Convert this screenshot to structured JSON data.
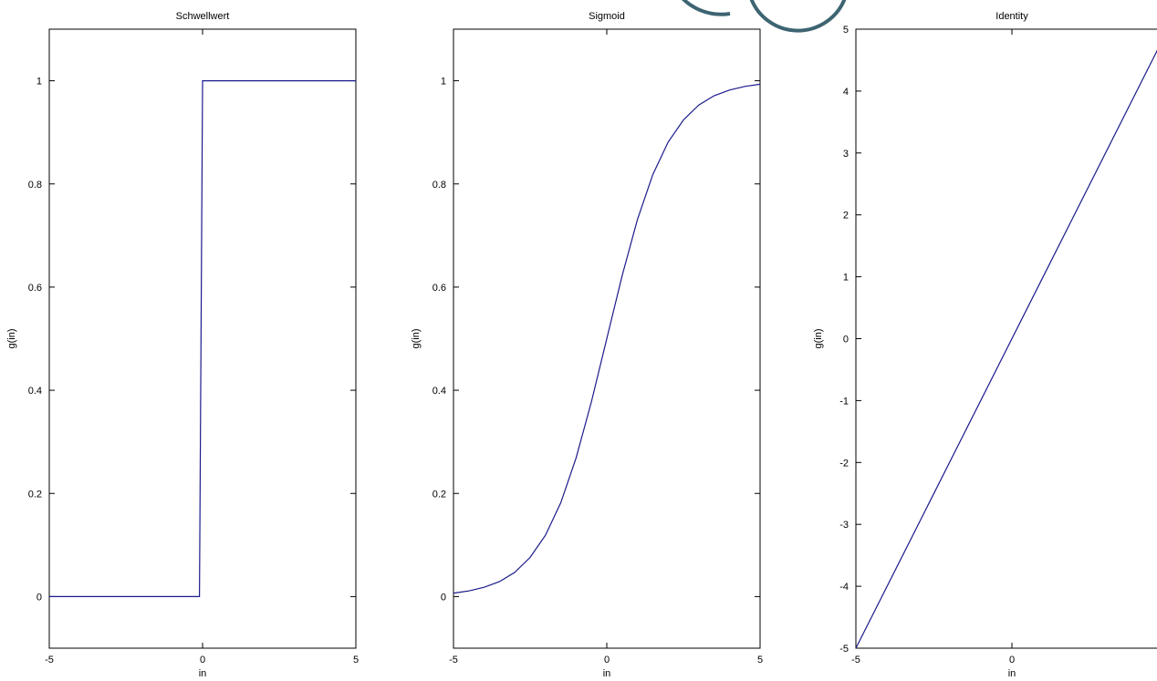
{
  "chart_data": [
    {
      "type": "line",
      "title": "Schwellwert",
      "xlabel": "in",
      "ylabel": "g(in)",
      "xlim": [
        -5,
        5
      ],
      "ylim": [
        -0.1,
        1.1
      ],
      "xticks": [
        -5,
        0,
        5
      ],
      "yticks": [
        0,
        0.2,
        0.4,
        0.6,
        0.8,
        1
      ],
      "xtick_labels": [
        "-5",
        "0",
        "5"
      ],
      "ytick_labels": [
        "0",
        "0.2",
        "0.4",
        "0.6",
        "0.8",
        "1"
      ],
      "grid": false,
      "series": [
        {
          "color": "#1a1a8c",
          "x": [
            -5,
            -0.1,
            0,
            5
          ],
          "y": [
            0,
            0,
            1,
            1
          ]
        }
      ]
    },
    {
      "type": "line",
      "title": "Sigmoid",
      "xlabel": "in",
      "ylabel": "g(in)",
      "xlim": [
        -5,
        5
      ],
      "ylim": [
        -0.1,
        1.1
      ],
      "xticks": [
        -5,
        0,
        5
      ],
      "yticks": [
        0,
        0.2,
        0.4,
        0.6,
        0.8,
        1
      ],
      "xtick_labels": [
        "-5",
        "0",
        "5"
      ],
      "ytick_labels": [
        "0",
        "0.2",
        "0.4",
        "0.6",
        "0.8",
        "1"
      ],
      "grid": false,
      "series": [
        {
          "color": "#1a1a8c",
          "x": [
            -5,
            -4.5,
            -4,
            -3.5,
            -3,
            -2.5,
            -2,
            -1.5,
            -1,
            -0.5,
            0,
            0.5,
            1,
            1.5,
            2,
            2.5,
            3,
            3.5,
            4,
            4.5,
            5
          ],
          "y": [
            0.0067,
            0.011,
            0.018,
            0.029,
            0.047,
            0.076,
            0.119,
            0.182,
            0.269,
            0.378,
            0.5,
            0.622,
            0.731,
            0.818,
            0.881,
            0.924,
            0.953,
            0.971,
            0.982,
            0.989,
            0.9933
          ]
        }
      ]
    },
    {
      "type": "line",
      "title": "Identity",
      "xlabel": "in",
      "ylabel": "g(in)",
      "xlim": [
        -5,
        5
      ],
      "ylim": [
        -5,
        5
      ],
      "xticks": [
        -5,
        0
      ],
      "yticks": [
        -5,
        -4,
        -3,
        -2,
        -1,
        0,
        1,
        2,
        3,
        4,
        5
      ],
      "xtick_labels": [
        "-5",
        "0"
      ],
      "ytick_labels": [
        "-5",
        "-4",
        "-3",
        "-2",
        "-1",
        "0",
        "1",
        "2",
        "3",
        "4",
        "5"
      ],
      "grid": false,
      "series": [
        {
          "color": "#1a1a8c",
          "x": [
            -5,
            5
          ],
          "y": [
            -5,
            5
          ]
        }
      ]
    }
  ]
}
